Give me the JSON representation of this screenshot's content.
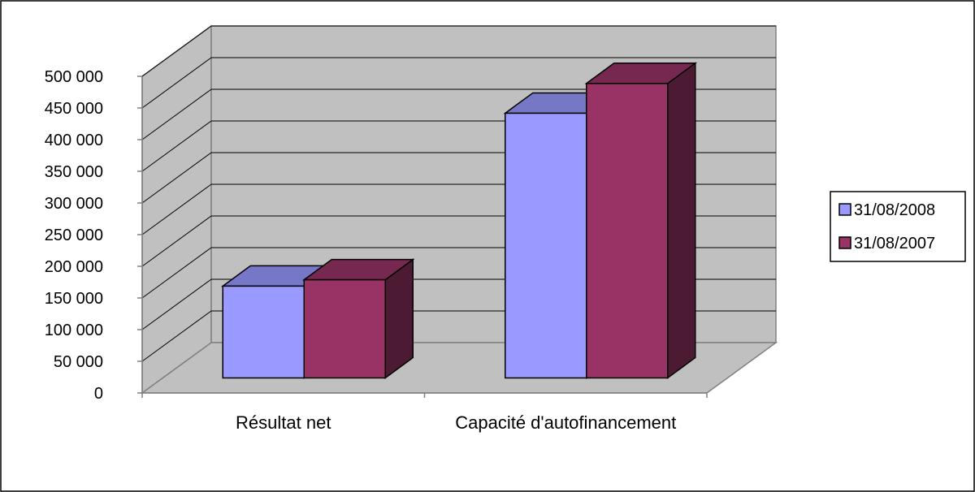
{
  "chart_data": {
    "type": "bar",
    "style": "3d-clustered-column",
    "categories": [
      "Résultat net",
      "Capacité d'autofinancement"
    ],
    "series": [
      {
        "name": "31/08/2008",
        "values": [
          145000,
          418000
        ],
        "color": "#9999ff"
      },
      {
        "name": "31/08/2007",
        "values": [
          155000,
          465000
        ],
        "color": "#993366"
      }
    ],
    "ylim": [
      0,
      500000
    ],
    "y_ticks": [
      "0",
      "50 000",
      "100 000",
      "150 000",
      "200 000",
      "250 000",
      "300 000",
      "350 000",
      "400 000",
      "450 000",
      "500 000"
    ],
    "grid": true,
    "legend_position": "right",
    "wall_color": "#c0c0c0"
  }
}
